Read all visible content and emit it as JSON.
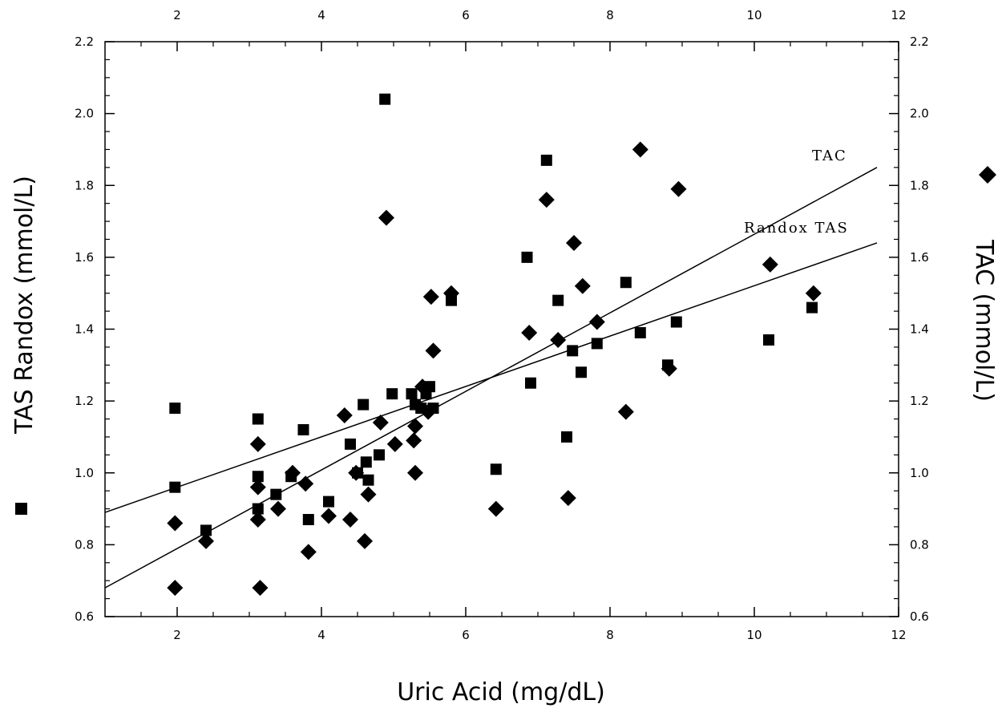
{
  "chart_data": {
    "type": "scatter",
    "xlabel": "Uric Acid (mg/dL)",
    "ylabel_left": "TAS Randox (mmol/L)",
    "ylabel_right": "TAC (mmol/L)",
    "xlim": [
      1,
      12
    ],
    "ylim": [
      0.6,
      2.2
    ],
    "xticks": [
      "2",
      "4",
      "6",
      "8",
      "10",
      "12"
    ],
    "yticks": [
      "0.6",
      "0.8",
      "1.0",
      "1.2",
      "1.4",
      "1.6",
      "1.8",
      "2.0",
      "2.2"
    ],
    "grid": false,
    "series": [
      {
        "marker": "square",
        "points": [
          [
            1.97,
            1.18
          ],
          [
            1.97,
            0.96
          ],
          [
            2.4,
            0.84
          ],
          [
            3.12,
            1.15
          ],
          [
            3.12,
            0.99
          ],
          [
            3.12,
            0.9
          ],
          [
            3.37,
            0.94
          ],
          [
            3.58,
            0.99
          ],
          [
            3.75,
            1.12
          ],
          [
            3.82,
            0.87
          ],
          [
            4.1,
            0.92
          ],
          [
            4.4,
            1.08
          ],
          [
            4.5,
            1.0
          ],
          [
            4.58,
            1.19
          ],
          [
            4.62,
            1.03
          ],
          [
            4.65,
            0.98
          ],
          [
            4.8,
            1.05
          ],
          [
            4.88,
            2.04
          ],
          [
            4.98,
            1.22
          ],
          [
            5.25,
            1.22
          ],
          [
            5.3,
            1.19
          ],
          [
            5.38,
            1.18
          ],
          [
            5.45,
            1.22
          ],
          [
            5.5,
            1.24
          ],
          [
            5.55,
            1.18
          ],
          [
            5.8,
            1.48
          ],
          [
            6.42,
            1.01
          ],
          [
            6.85,
            1.6
          ],
          [
            6.9,
            1.25
          ],
          [
            7.12,
            1.87
          ],
          [
            7.28,
            1.48
          ],
          [
            7.4,
            1.1
          ],
          [
            7.48,
            1.34
          ],
          [
            7.6,
            1.28
          ],
          [
            7.82,
            1.36
          ],
          [
            8.22,
            1.53
          ],
          [
            8.42,
            1.39
          ],
          [
            8.8,
            1.3
          ],
          [
            8.92,
            1.42
          ],
          [
            10.2,
            1.37
          ],
          [
            10.8,
            1.46
          ]
        ]
      },
      {
        "marker": "diamond",
        "points": [
          [
            1.97,
            0.86
          ],
          [
            1.97,
            0.68
          ],
          [
            2.4,
            0.81
          ],
          [
            3.12,
            1.08
          ],
          [
            3.12,
            0.96
          ],
          [
            3.12,
            0.87
          ],
          [
            3.15,
            0.68
          ],
          [
            3.4,
            0.9
          ],
          [
            3.6,
            1.0
          ],
          [
            3.78,
            0.97
          ],
          [
            3.82,
            0.78
          ],
          [
            4.1,
            0.88
          ],
          [
            4.32,
            1.16
          ],
          [
            4.4,
            0.87
          ],
          [
            4.48,
            1.0
          ],
          [
            4.6,
            0.81
          ],
          [
            4.65,
            0.94
          ],
          [
            4.82,
            1.14
          ],
          [
            4.9,
            1.71
          ],
          [
            5.02,
            1.08
          ],
          [
            5.28,
            1.09
          ],
          [
            5.3,
            1.0
          ],
          [
            5.3,
            1.13
          ],
          [
            5.4,
            1.24
          ],
          [
            5.48,
            1.17
          ],
          [
            5.52,
            1.49
          ],
          [
            5.55,
            1.34
          ],
          [
            5.8,
            1.5
          ],
          [
            6.42,
            0.9
          ],
          [
            6.88,
            1.39
          ],
          [
            7.12,
            1.76
          ],
          [
            7.28,
            1.37
          ],
          [
            7.42,
            0.93
          ],
          [
            7.5,
            1.64
          ],
          [
            7.62,
            1.52
          ],
          [
            7.82,
            1.42
          ],
          [
            8.22,
            1.17
          ],
          [
            8.42,
            1.9
          ],
          [
            8.82,
            1.29
          ],
          [
            8.95,
            1.79
          ],
          [
            10.22,
            1.58
          ],
          [
            10.82,
            1.5
          ]
        ]
      }
    ],
    "trend_lines": [
      {
        "name": "TAC",
        "points": [
          [
            1,
            0.68
          ],
          [
            11.7,
            1.85
          ]
        ]
      },
      {
        "name": "Randox TAS",
        "points": [
          [
            1,
            0.89
          ],
          [
            11.7,
            1.64
          ]
        ]
      }
    ],
    "legend_markers": {
      "left": "square",
      "right": "diamond"
    }
  }
}
